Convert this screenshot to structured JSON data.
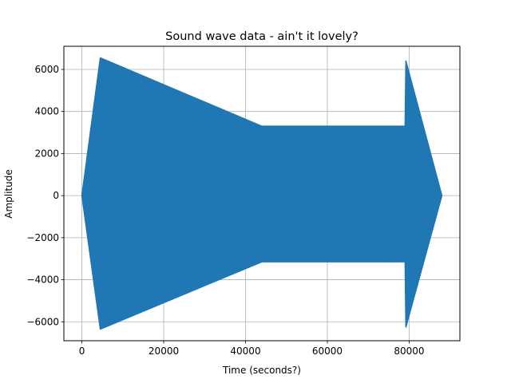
{
  "chart_data": {
    "type": "area",
    "title": "Sound wave data - ain't it lovely?",
    "xlabel": "Time (seconds?)",
    "ylabel": "Amplitude",
    "xlim": [
      -4400,
      92400
    ],
    "ylim": [
      -6900,
      7100
    ],
    "xticks": [
      0,
      20000,
      40000,
      60000,
      80000
    ],
    "yticks": [
      -6000,
      -4000,
      -2000,
      0,
      2000,
      4000,
      6000
    ],
    "grid": true,
    "series_color": "#1f77b4",
    "series": [
      {
        "x": [
          0,
          4500,
          44000,
          79000,
          79200,
          88000
        ],
        "upper": [
          0,
          6550,
          3300,
          3300,
          6400,
          0
        ],
        "lower": [
          0,
          -6350,
          -3150,
          -3150,
          -6250,
          0
        ]
      }
    ]
  }
}
